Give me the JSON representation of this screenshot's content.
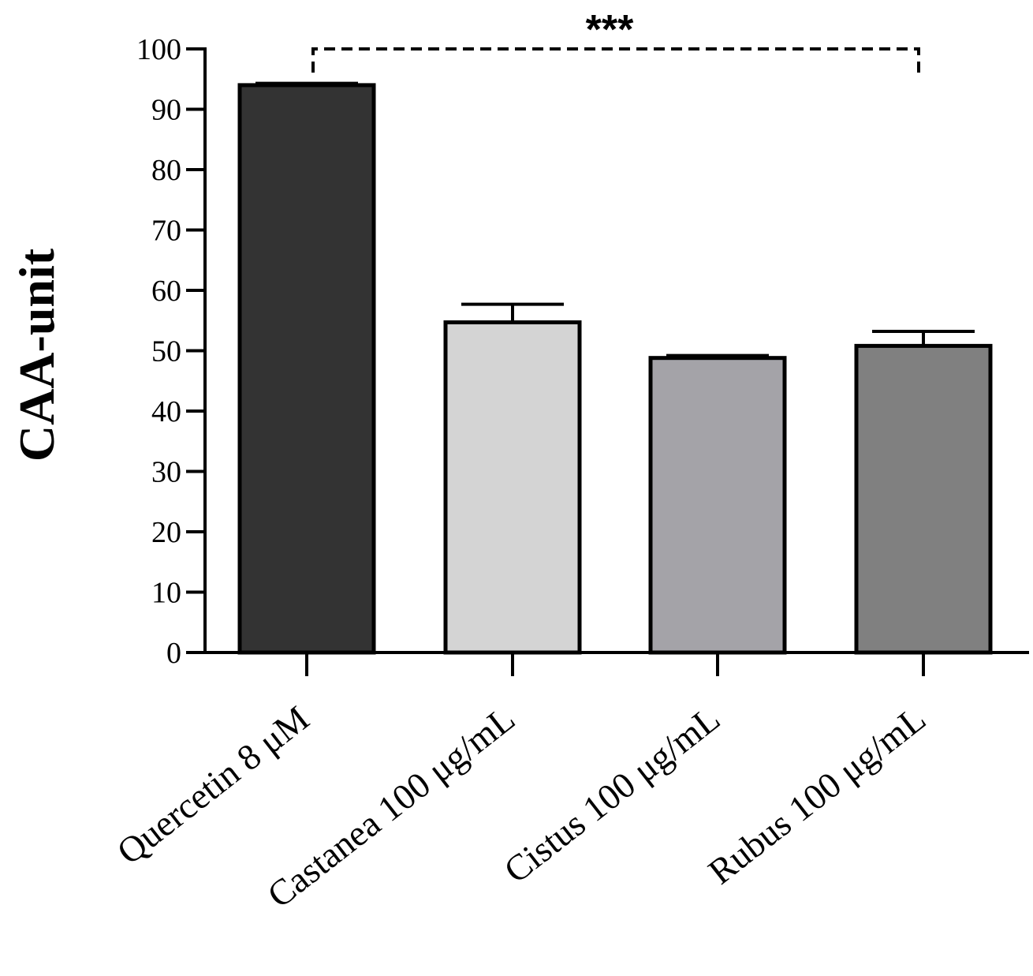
{
  "chart_data": {
    "type": "bar",
    "title": "",
    "xlabel": "",
    "ylabel": "CAA-unit",
    "ylim": [
      0,
      100
    ],
    "yticks": [
      0,
      10,
      20,
      30,
      40,
      50,
      60,
      70,
      80,
      90,
      100
    ],
    "categories": [
      "Quercetin 8 μM",
      "Castanea 100 μg/mL",
      "Cistus 100 μg/mL",
      "Rubus 100 μg/mL"
    ],
    "values": [
      94,
      54.7,
      48.8,
      50.8
    ],
    "errors": [
      0.3,
      3.0,
      0.4,
      2.4
    ],
    "colors": [
      "#333333",
      "#d4d4d4",
      "#a4a3a8",
      "#808080"
    ],
    "significance": {
      "label": "***",
      "from": 0,
      "to": 3
    }
  }
}
